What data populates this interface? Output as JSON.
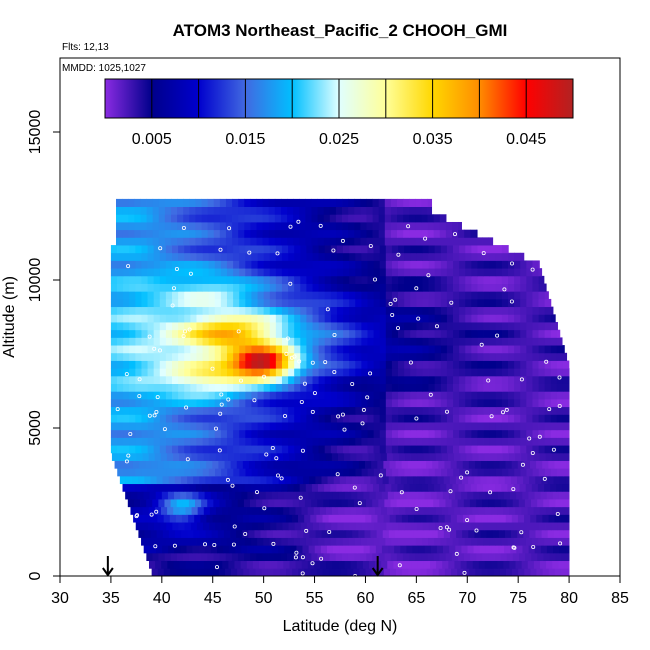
{
  "chart_data": {
    "type": "heatmap",
    "title": "ATOM3 Northeast_Pacific_2 CHOOH_GMI",
    "flights_note": "Flts: 12,13",
    "dates_note": "MMDD: 1025,1027",
    "xlabel": "Latitude (deg N)",
    "ylabel": "Altitude (m)",
    "xlim": [
      30,
      85
    ],
    "ylim": [
      0,
      17500
    ],
    "x_ticks": [
      "30",
      "35",
      "40",
      "45",
      "50",
      "55",
      "60",
      "65",
      "70",
      "75",
      "80",
      "85"
    ],
    "y_ticks": [
      "0",
      "5000",
      "10000",
      "15000"
    ],
    "colorbar": {
      "range": [
        0,
        0.05
      ],
      "tick_labels": [
        "0.005",
        "0.015",
        "0.025",
        "0.035",
        "0.045"
      ],
      "tick_values": [
        0.005,
        0.015,
        0.025,
        0.035,
        0.045
      ],
      "colors": [
        "#8a2be2",
        "#00008b",
        "#0000cd",
        "#4169e1",
        "#00bfff",
        "#e0ffff",
        "#ffff99",
        "#ffd700",
        "#ff8c00",
        "#ff0000",
        "#b22222"
      ]
    },
    "arrow_markers_lat": [
      34.7,
      61.2
    ],
    "field_extent": {
      "lat_range": [
        35.5,
        80
      ],
      "alt_range": [
        0,
        12500
      ]
    },
    "hotspot": {
      "lat": 50,
      "alt": 7200,
      "value": 0.045
    },
    "secondary_maxima": [
      {
        "lat": 47,
        "alt": 8200,
        "value": 0.036
      },
      {
        "lat": 45,
        "alt": 6700,
        "value": 0.032
      },
      {
        "lat": 45,
        "alt": 9700,
        "value": 0.027
      }
    ],
    "low_region": {
      "lat_range": [
        53,
        66
      ],
      "alt_range": [
        0,
        3500
      ],
      "value": 0.001
    },
    "grid": false,
    "legend_position": "top"
  }
}
